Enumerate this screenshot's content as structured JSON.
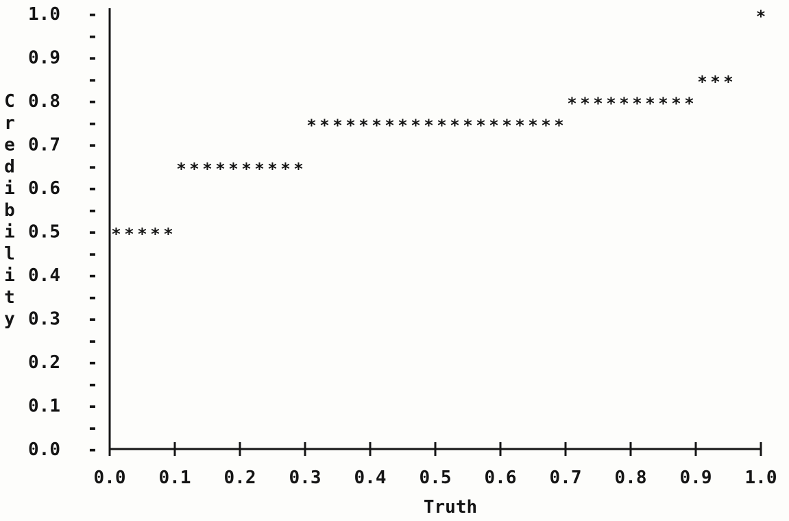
{
  "chart_data": {
    "type": "scatter",
    "title": "",
    "xlabel": "Truth",
    "ylabel": "Credibility",
    "xlim": [
      0.0,
      1.0
    ],
    "ylim": [
      0.0,
      1.0
    ],
    "grid": false,
    "marker": "*",
    "x_ticks": [
      "0.0",
      "0.1",
      "0.2",
      "0.3",
      "0.4",
      "0.5",
      "0.6",
      "0.7",
      "0.8",
      "0.9",
      "1.0"
    ],
    "y_ticks": [
      "0.0",
      "0.1",
      "0.2",
      "0.3",
      "0.4",
      "0.5",
      "0.6",
      "0.7",
      "0.8",
      "0.9",
      "1.0"
    ],
    "steps": [
      {
        "x_from": 0.0,
        "x_to": 0.1,
        "y": 0.5
      },
      {
        "x_from": 0.1,
        "x_to": 0.3,
        "y": 0.65
      },
      {
        "x_from": 0.3,
        "x_to": 0.7,
        "y": 0.75
      },
      {
        "x_from": 0.7,
        "x_to": 0.9,
        "y": 0.8
      },
      {
        "x_from": 0.9,
        "x_to": 0.96,
        "y": 0.85
      },
      {
        "x_from": 1.0,
        "x_to": 1.0,
        "y": 1.0
      }
    ]
  }
}
